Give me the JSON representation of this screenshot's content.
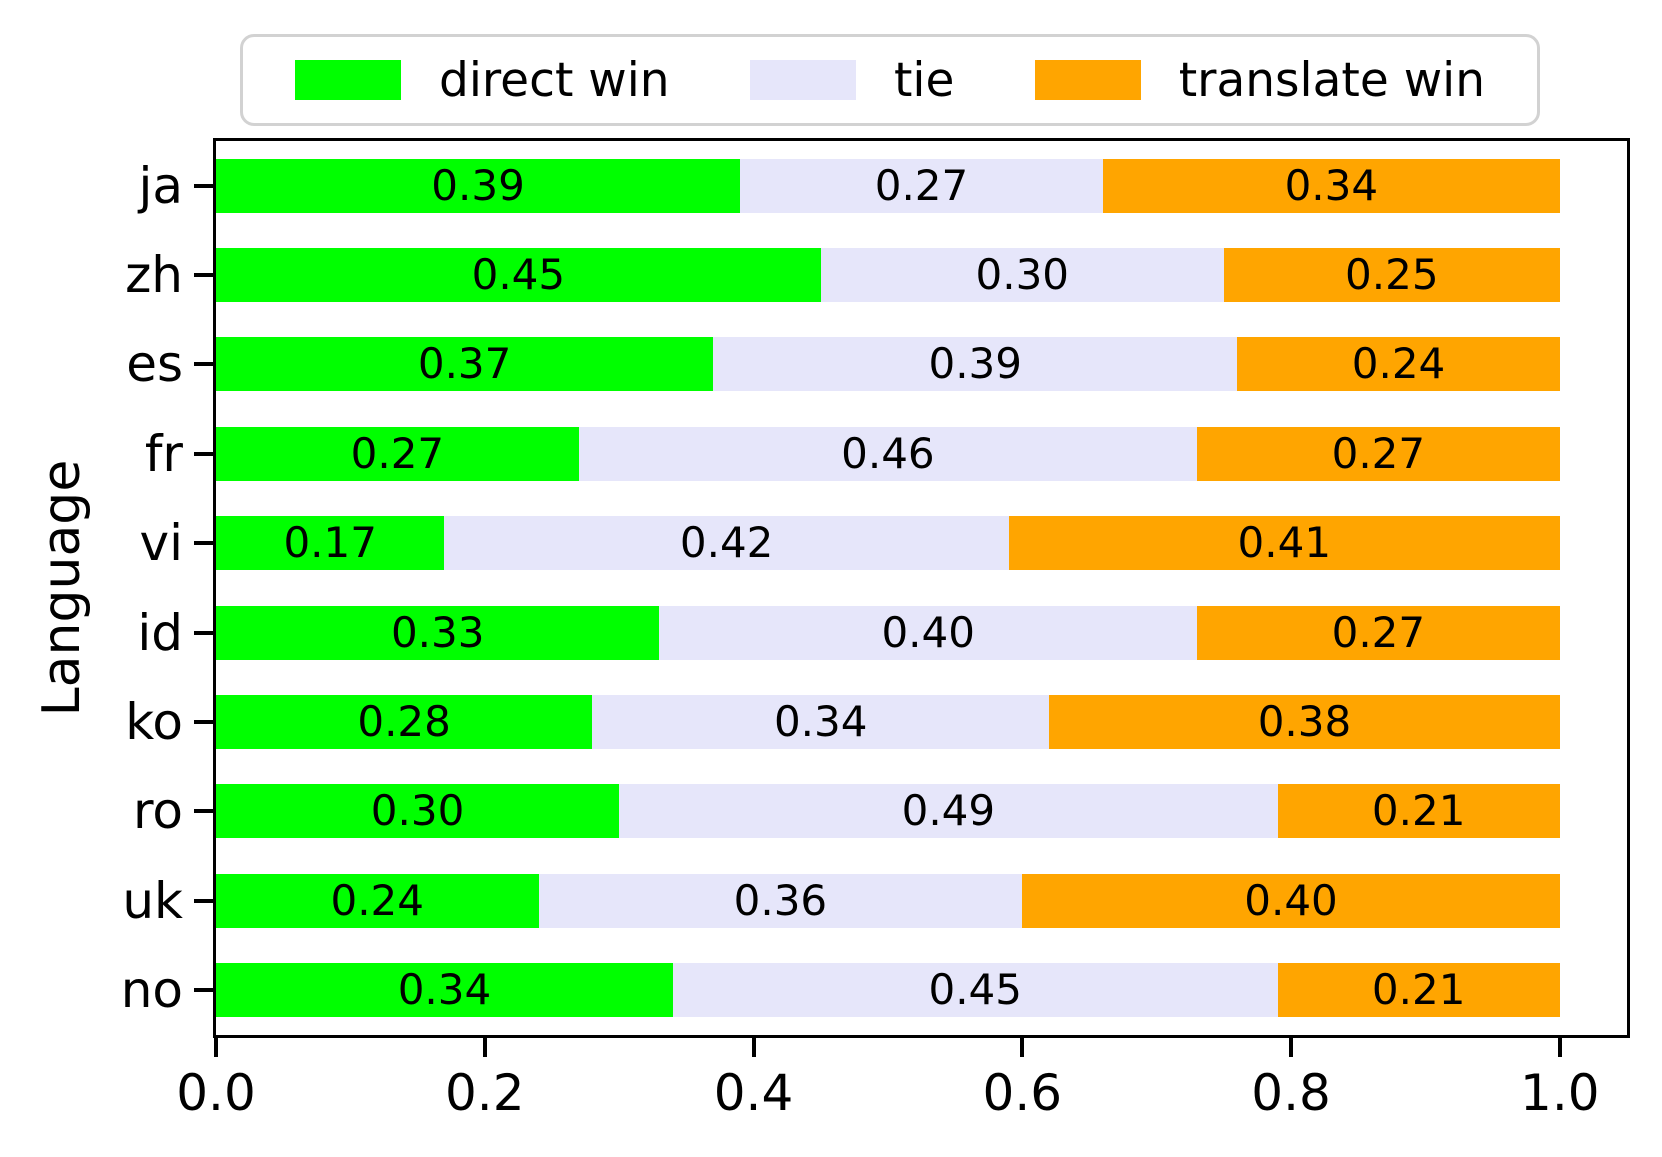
{
  "chart_data": {
    "type": "bar",
    "orientation": "horizontal-stacked",
    "title": "",
    "xlabel": "",
    "ylabel": "Language",
    "xlim": [
      0,
      1.05
    ],
    "bar_span": [
      0,
      1.0
    ],
    "grid": false,
    "legend_position": "top-center",
    "categories": [
      "ja",
      "zh",
      "es",
      "fr",
      "vi",
      "id",
      "ko",
      "ro",
      "uk",
      "no"
    ],
    "series": [
      {
        "name": "direct win",
        "color": "#00ff00",
        "values": [
          0.39,
          0.45,
          0.37,
          0.27,
          0.17,
          0.33,
          0.28,
          0.3,
          0.24,
          0.34
        ]
      },
      {
        "name": "tie",
        "color": "#e6e6fa",
        "values": [
          0.27,
          0.3,
          0.39,
          0.46,
          0.42,
          0.4,
          0.34,
          0.49,
          0.36,
          0.45
        ]
      },
      {
        "name": "translate win",
        "color": "#ffa500",
        "values": [
          0.34,
          0.25,
          0.24,
          0.27,
          0.41,
          0.27,
          0.38,
          0.21,
          0.4,
          0.21
        ]
      }
    ],
    "value_label_format": "0.00",
    "xticks": {
      "values": [
        0.0,
        0.2,
        0.4,
        0.6,
        0.8,
        1.0
      ],
      "labels": [
        "0.0",
        "0.2",
        "0.4",
        "0.6",
        "0.8",
        "1.0"
      ]
    }
  }
}
